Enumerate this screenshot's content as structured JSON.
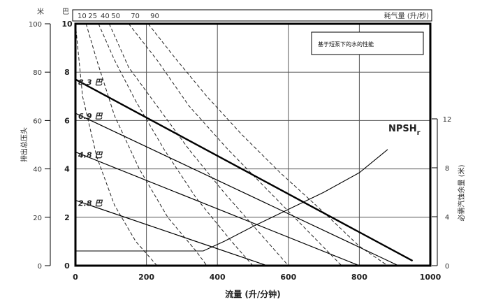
{
  "chart_data": {
    "type": "line",
    "x_axis": {
      "title": "流量 (升/分钟)",
      "min": 0,
      "max": 1000,
      "ticks": [
        "0",
        "200",
        "400",
        "600",
        "800",
        "1000"
      ]
    },
    "left_axis": {
      "title": "排出总压头",
      "unit_outer": "米",
      "outer_ticks": [
        "0",
        "20",
        "40",
        "60",
        "80",
        "100"
      ],
      "unit_inner": "巴",
      "inner_ticks": [
        "0",
        "2",
        "4",
        "6",
        "8",
        "10"
      ]
    },
    "right_axis": {
      "title": "必需汽蚀余量 (米)",
      "ticks": [
        "0",
        "4",
        "8",
        "12"
      ],
      "max": 12
    },
    "top_axis": {
      "title": "耗气量 (升/秒)",
      "ticks": [
        "10",
        "25",
        "40",
        "50",
        "70",
        "90"
      ]
    },
    "note": "基于短泵下的水的性能",
    "grid": true,
    "head_curves": [
      {
        "label": "8.3 巴",
        "bold": true,
        "x": [
          0,
          950
        ],
        "y": [
          77,
          2
        ]
      },
      {
        "label": "6.9 巴",
        "bold": false,
        "x": [
          0,
          910
        ],
        "y": [
          63,
          0
        ]
      },
      {
        "label": "4.8 巴",
        "bold": false,
        "x": [
          0,
          800
        ],
        "y": [
          47,
          0
        ]
      },
      {
        "label": "2.8 巴",
        "bold": false,
        "x": [
          0,
          540
        ],
        "y": [
          27,
          0
        ]
      }
    ],
    "air_curves": [
      {
        "label": "10",
        "x": [
          0,
          20,
          60,
          110,
          170,
          230
        ],
        "y": [
          100,
          70,
          45,
          25,
          10,
          0
        ]
      },
      {
        "label": "25",
        "x": [
          30,
          60,
          110,
          180,
          260,
          340,
          370
        ],
        "y": [
          100,
          85,
          62,
          40,
          20,
          6,
          0
        ]
      },
      {
        "label": "40",
        "x": [
          65,
          110,
          170,
          250,
          340,
          440,
          500
        ],
        "y": [
          100,
          85,
          68,
          48,
          28,
          10,
          0
        ]
      },
      {
        "label": "50",
        "x": [
          95,
          150,
          230,
          320,
          420,
          540,
          600
        ],
        "y": [
          100,
          82,
          66,
          48,
          30,
          10,
          0
        ]
      },
      {
        "label": "70",
        "x": [
          150,
          230,
          320,
          430,
          550,
          670,
          750
        ],
        "y": [
          100,
          85,
          66,
          48,
          30,
          12,
          0
        ]
      },
      {
        "label": "90",
        "x": [
          205,
          280,
          370,
          470,
          580,
          700,
          800,
          880
        ],
        "y": [
          100,
          86,
          70,
          54,
          38,
          22,
          8,
          0
        ]
      }
    ],
    "npsh_curve": {
      "label": "NPSHr",
      "label_main": "NPSH",
      "label_sub": "r",
      "x": [
        0,
        360,
        420,
        500,
        600,
        700,
        800,
        880
      ],
      "y": [
        1.2,
        1.2,
        2.0,
        3.2,
        4.6,
        6.0,
        7.6,
        9.5
      ]
    }
  }
}
